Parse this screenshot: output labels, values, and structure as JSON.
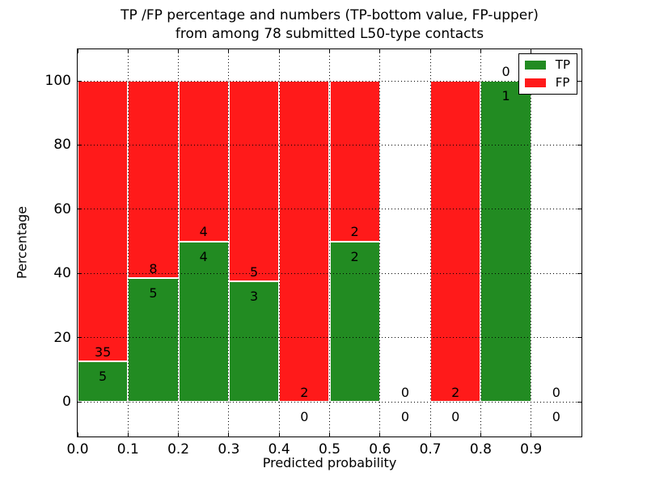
{
  "figure": {
    "title_line1": "TP /FP percentage and numbers (TP-bottom value, FP-upper)",
    "title_line2": "from among 78 submitted L50-type contacts"
  },
  "axes": {
    "x_label": "Predicted probability",
    "y_label": "Percentage",
    "x_tick_labels": [
      "0.0",
      "0.1",
      "0.2",
      "0.3",
      "0.4",
      "0.5",
      "0.6",
      "0.7",
      "0.8",
      "0.9"
    ],
    "x_tick_values": [
      0.0,
      0.1,
      0.2,
      0.3,
      0.4,
      0.5,
      0.6,
      0.7,
      0.8,
      0.9
    ],
    "y_tick_labels": [
      "0",
      "20",
      "40",
      "60",
      "80",
      "100"
    ],
    "y_tick_values": [
      0,
      20,
      40,
      60,
      80,
      100
    ],
    "grid_style": "dotted"
  },
  "legend": {
    "position": "upper right",
    "items": [
      {
        "label": "TP",
        "color": "#228b22"
      },
      {
        "label": "FP",
        "color": "#ff1a1a"
      }
    ]
  },
  "colors": {
    "tp": "#228b22",
    "fp": "#ff1a1a",
    "grid": "#000000",
    "text": "#000000",
    "background": "#ffffff"
  },
  "chart_data": {
    "type": "bar",
    "stacked": true,
    "title": "TP /FP percentage and numbers (TP-bottom value, FP-upper) from among 78 submitted L50-type contacts",
    "xlabel": "Predicted probability",
    "ylabel": "Percentage",
    "xlim": [
      0.0,
      1.0
    ],
    "ylim": [
      -10.8,
      109.8
    ],
    "grid": true,
    "legend_position": "upper right",
    "total_submitted": 78,
    "bin_width": 0.1,
    "note": "bars normalized to 100%; labels show raw counts, TP bottom / FP upper",
    "bins": [
      {
        "x0": 0.0,
        "x1": 0.1,
        "tp": 5,
        "fp": 35,
        "tp_pct": 12.5
      },
      {
        "x0": 0.1,
        "x1": 0.2,
        "tp": 5,
        "fp": 8,
        "tp_pct": 38.46
      },
      {
        "x0": 0.2,
        "x1": 0.3,
        "tp": 4,
        "fp": 4,
        "tp_pct": 50.0
      },
      {
        "x0": 0.3,
        "x1": 0.4,
        "tp": 3,
        "fp": 5,
        "tp_pct": 37.5
      },
      {
        "x0": 0.4,
        "x1": 0.5,
        "tp": 0,
        "fp": 2,
        "tp_pct": 0.0
      },
      {
        "x0": 0.5,
        "x1": 0.6,
        "tp": 2,
        "fp": 2,
        "tp_pct": 50.0
      },
      {
        "x0": 0.6,
        "x1": 0.7,
        "tp": 0,
        "fp": 0,
        "tp_pct": null
      },
      {
        "x0": 0.7,
        "x1": 0.8,
        "tp": 0,
        "fp": 2,
        "tp_pct": 0.0
      },
      {
        "x0": 0.8,
        "x1": 0.9,
        "tp": 1,
        "fp": 0,
        "tp_pct": 100.0
      },
      {
        "x0": 0.9,
        "x1": 1.0,
        "tp": 0,
        "fp": 0,
        "tp_pct": null
      }
    ]
  }
}
